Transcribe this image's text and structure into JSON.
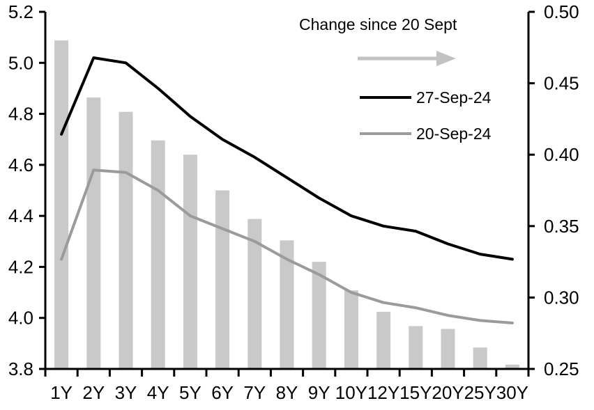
{
  "chart_data": {
    "type": "combo",
    "title": "",
    "legend": {
      "title": "Change since 20 Sept",
      "position": "top-right-inside",
      "arrow_icon": "right-arrow"
    },
    "categories": [
      "1Y",
      "2Y",
      "3Y",
      "4Y",
      "5Y",
      "6Y",
      "7Y",
      "8Y",
      "9Y",
      "10Y",
      "12Y",
      "15Y",
      "20Y",
      "25Y",
      "30Y"
    ],
    "series": [
      {
        "name": "Change since 20 Sept",
        "type": "bar",
        "axis": "right",
        "color": "#c9c9c9",
        "values": [
          0.48,
          0.44,
          0.43,
          0.41,
          0.4,
          0.375,
          0.355,
          0.34,
          0.325,
          0.305,
          0.29,
          0.28,
          0.278,
          0.265,
          0.253
        ]
      },
      {
        "name": "27-Sep-24",
        "type": "line",
        "axis": "left",
        "color": "#000000",
        "values": [
          4.72,
          5.02,
          5.0,
          4.9,
          4.79,
          4.7,
          4.63,
          4.55,
          4.47,
          4.4,
          4.36,
          4.34,
          4.29,
          4.25,
          4.23
        ]
      },
      {
        "name": "20-Sep-24",
        "type": "line",
        "axis": "left",
        "color": "#9b9b9b",
        "values": [
          4.23,
          4.58,
          4.57,
          4.5,
          4.4,
          4.35,
          4.3,
          4.23,
          4.17,
          4.1,
          4.06,
          4.04,
          4.01,
          3.99,
          3.98
        ]
      }
    ],
    "left_axis": {
      "min": 3.8,
      "max": 5.2,
      "ticks": [
        5.2,
        5.0,
        4.8,
        4.6,
        4.4,
        4.2,
        4.0,
        3.8
      ],
      "tick_labels": [
        "5.2",
        "5.0",
        "4.8",
        "4.6",
        "4.4",
        "4.2",
        "4.0",
        "3.8"
      ]
    },
    "right_axis": {
      "min": 0.25,
      "max": 0.5,
      "ticks": [
        0.5,
        0.45,
        0.4,
        0.35,
        0.3,
        0.25
      ],
      "tick_labels": [
        "0.50",
        "0.45",
        "0.40",
        "0.35",
        "0.30",
        "0.25"
      ]
    },
    "grid": false,
    "colors": {
      "axis": "#000000",
      "arrow": "#c2c2c2",
      "background": "#ffffff"
    }
  }
}
